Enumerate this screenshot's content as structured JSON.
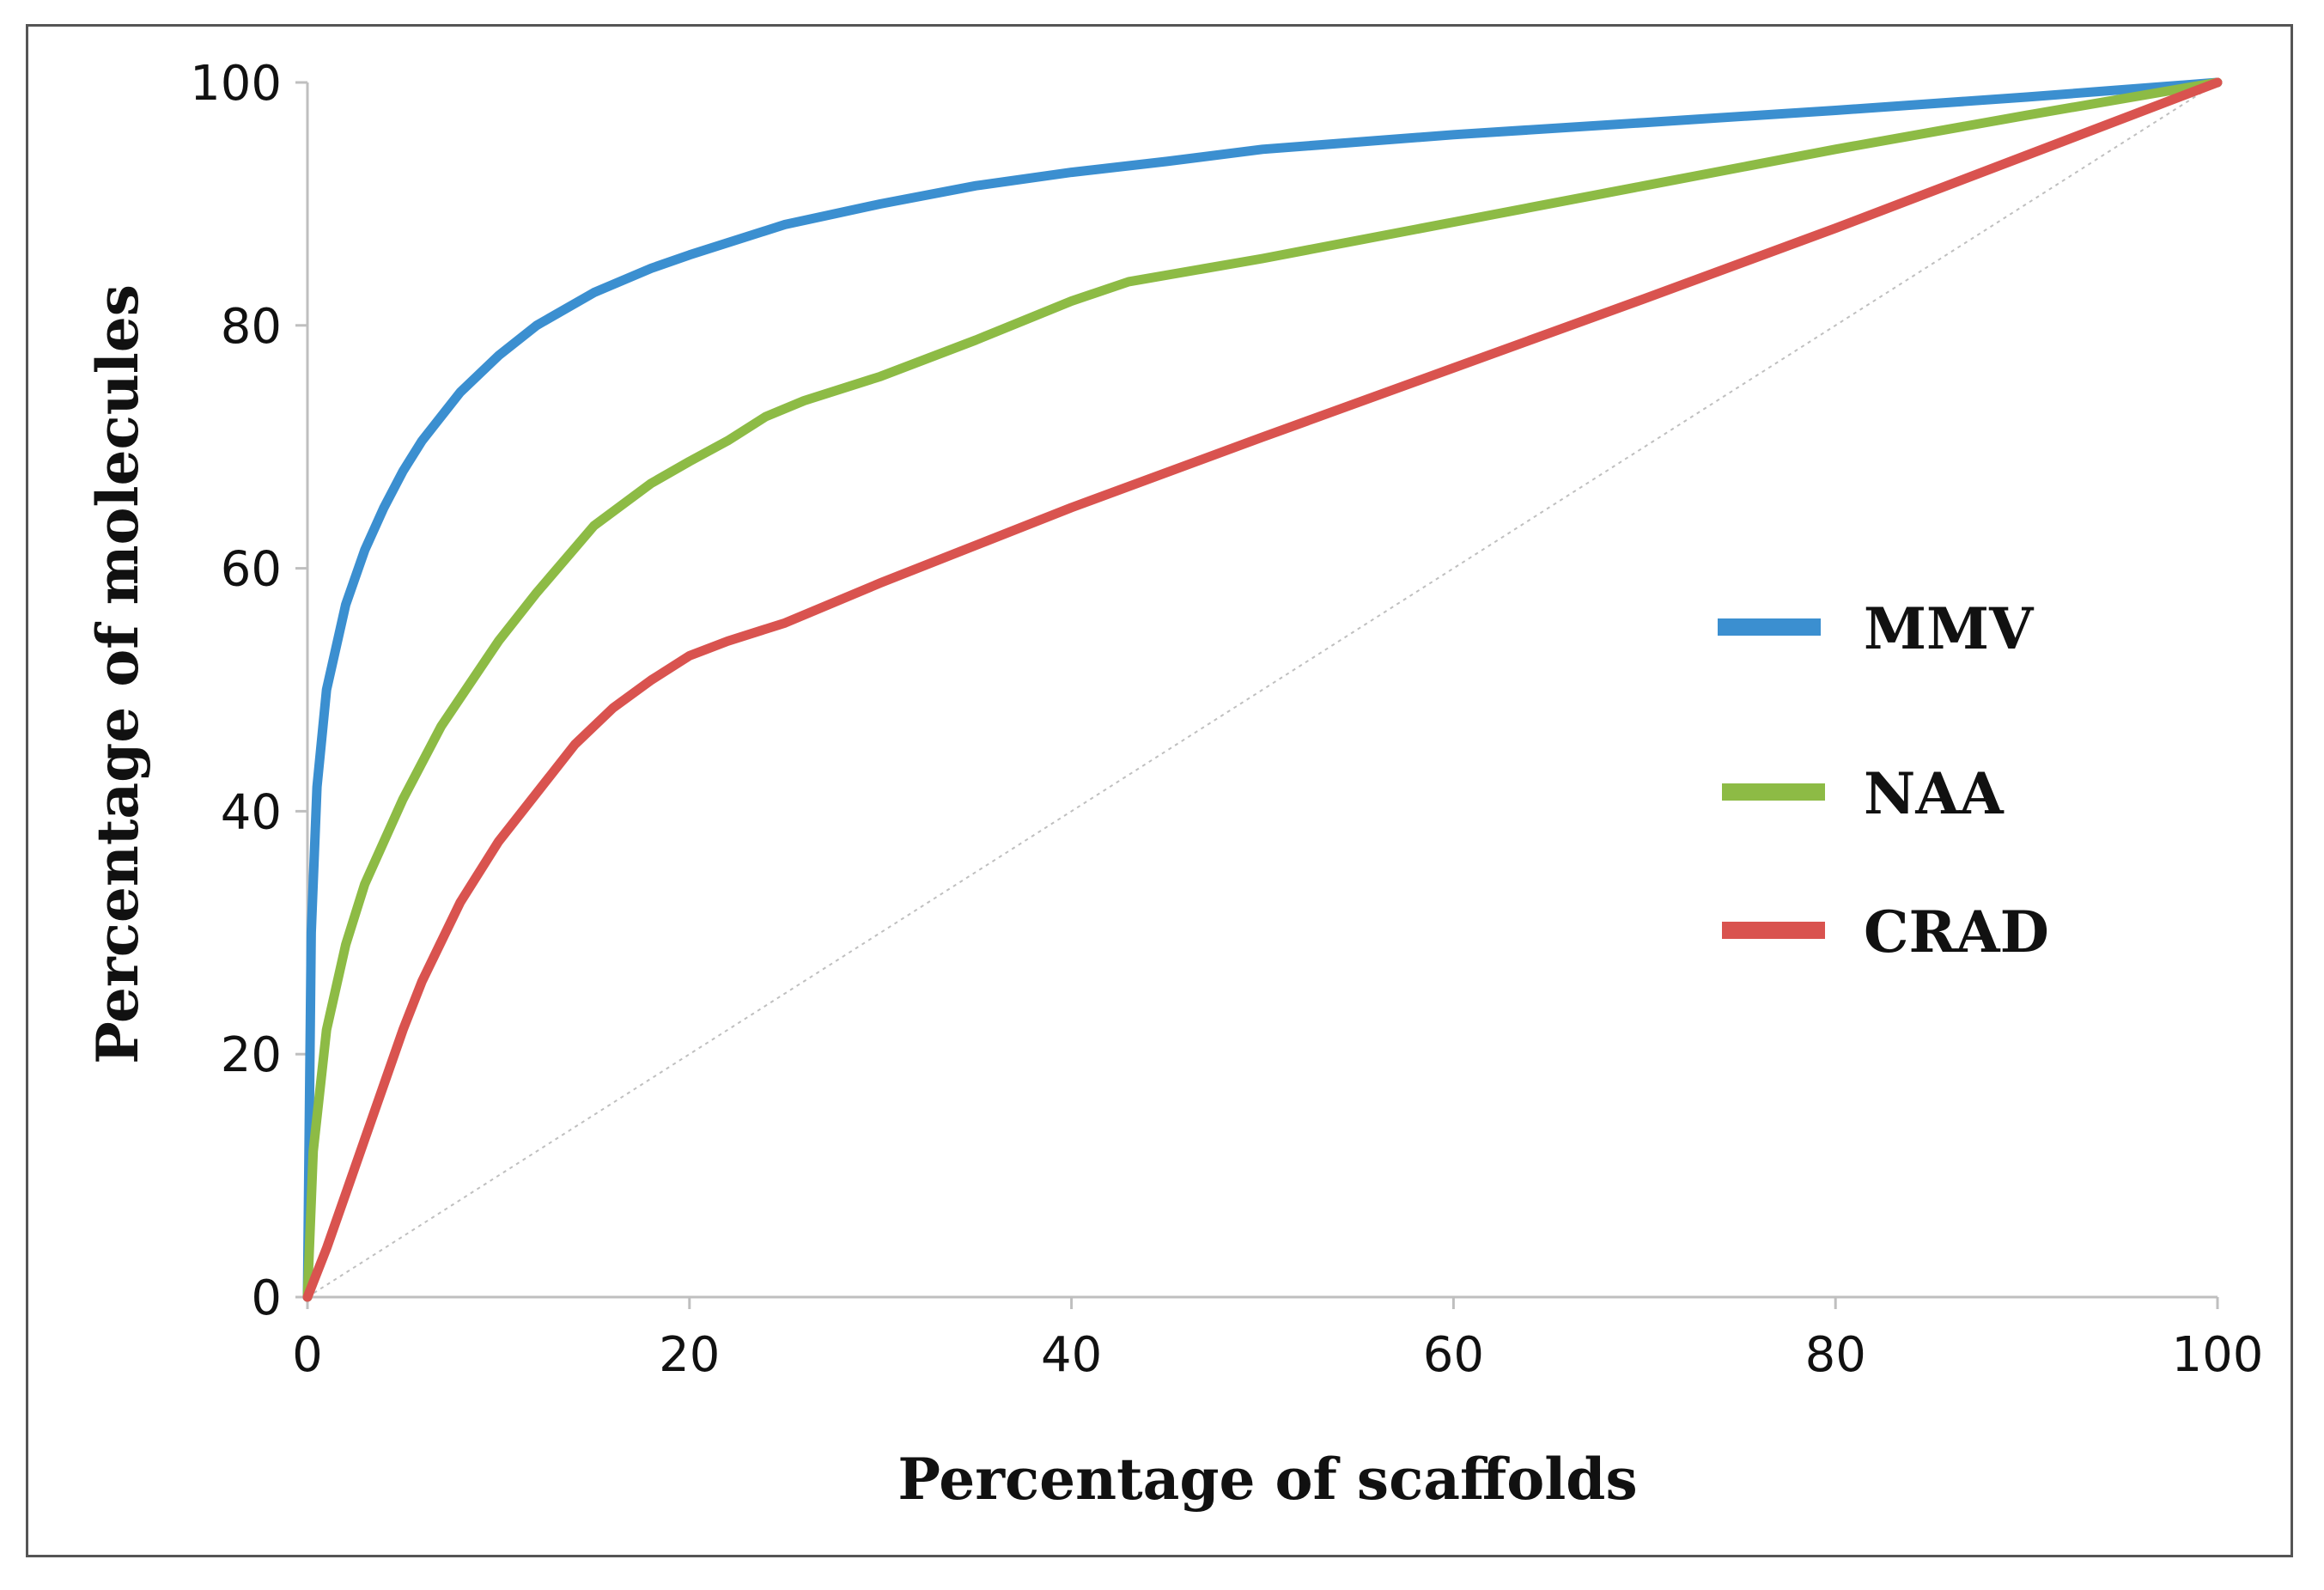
{
  "chart_data": {
    "type": "line",
    "title": "",
    "xlabel": "Percentage of scaffolds",
    "ylabel": "Percentage of molecules",
    "xlim": [
      0,
      100
    ],
    "ylim": [
      0,
      100
    ],
    "xticks": [
      0,
      20,
      40,
      60,
      80,
      100
    ],
    "yticks": [
      0,
      20,
      40,
      60,
      80,
      100
    ],
    "grid": false,
    "legend_position": "right-center",
    "reference_line": {
      "style": "dotted",
      "color": "#bfbfbf",
      "from": [
        0,
        0
      ],
      "to": [
        100,
        100
      ]
    },
    "series": [
      {
        "name": "MMV",
        "color": "#3b8fd0",
        "x": [
          0,
          0.2,
          0.5,
          1,
          2,
          3,
          4,
          5,
          6,
          8,
          10,
          12,
          15,
          18,
          20,
          25,
          30,
          35,
          40,
          45,
          50,
          60,
          70,
          80,
          90,
          100
        ],
        "y": [
          0,
          30,
          42,
          50,
          57,
          61.5,
          65,
          68,
          70.5,
          74.5,
          77.5,
          80,
          82.7,
          84.7,
          85.8,
          88.3,
          90,
          91.5,
          92.6,
          93.5,
          94.5,
          95.7,
          96.7,
          97.7,
          98.8,
          100
        ]
      },
      {
        "name": "NAA",
        "color": "#8dbb45",
        "x": [
          0,
          0.3,
          1,
          2,
          3,
          5,
          7,
          10,
          12,
          15,
          18,
          20,
          22,
          24,
          26,
          30,
          35,
          40,
          43,
          50,
          60,
          70,
          80,
          90,
          100
        ],
        "y": [
          0,
          12,
          22,
          29,
          34,
          41,
          47,
          54,
          58,
          63.5,
          67,
          68.8,
          70.5,
          72.5,
          73.8,
          75.8,
          78.8,
          82,
          83.6,
          85.5,
          88.5,
          91.5,
          94.5,
          97.3,
          100
        ]
      },
      {
        "name": "CRAD",
        "color": "#d9534f",
        "x": [
          0,
          1,
          2,
          3,
          4,
          5,
          6,
          8,
          10,
          12,
          14,
          16,
          18,
          20,
          22,
          25,
          30,
          40,
          50,
          60,
          70,
          80,
          90,
          100
        ],
        "y": [
          0,
          4,
          8.5,
          13,
          17.5,
          22,
          26,
          32.5,
          37.5,
          41.5,
          45.5,
          48.5,
          50.8,
          52.8,
          54,
          55.5,
          58.8,
          65,
          70.8,
          76.5,
          82.2,
          88,
          94,
          100
        ]
      }
    ]
  }
}
